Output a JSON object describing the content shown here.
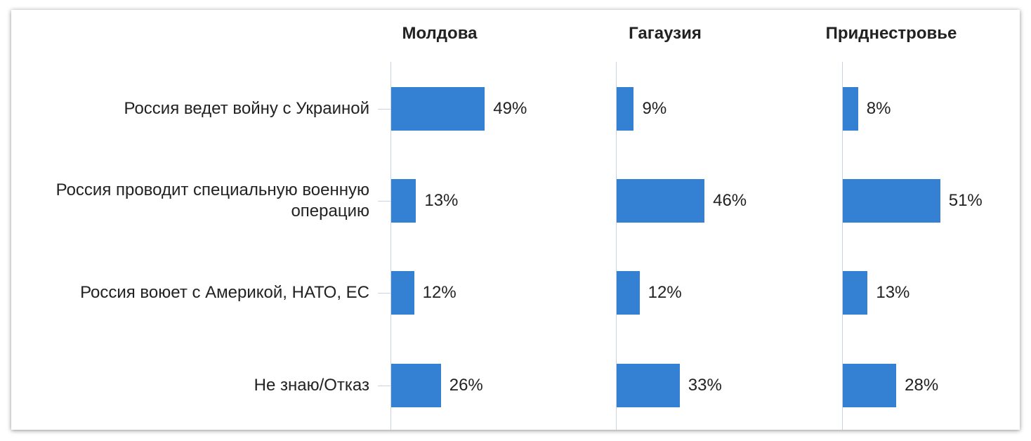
{
  "chart_data": {
    "type": "bar",
    "orientation": "horizontal",
    "categories": [
      "Россия ведет войну с Украиной",
      "Россия проводит специальную военную операцию",
      "Россия воюет с Америкой, НАТО, ЕС",
      "Не знаю/Отказ"
    ],
    "series": [
      {
        "name": "Молдова",
        "color": "#3480d2",
        "values": [
          49,
          13,
          12,
          26
        ],
        "value_labels": [
          "49%",
          "13%",
          "12%",
          "26%"
        ]
      },
      {
        "name": "Гагаузия",
        "color": "#3480d2",
        "values": [
          9,
          46,
          12,
          33
        ],
        "value_labels": [
          "9%",
          "46%",
          "12%",
          "33%"
        ]
      },
      {
        "name": "Приднестровье",
        "color": "#3480d2",
        "values": [
          8,
          51,
          13,
          28
        ],
        "value_labels": [
          "8%",
          "51%",
          "13%",
          "28%"
        ]
      }
    ]
  }
}
